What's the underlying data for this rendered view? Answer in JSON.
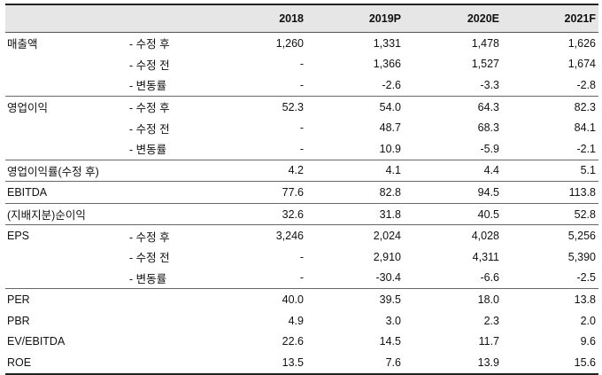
{
  "header": {
    "cols": [
      "2018",
      "2019P",
      "2020E",
      "2021F"
    ]
  },
  "rows": [
    {
      "label": "매출액",
      "sub": "- 수정 후",
      "values": [
        "1,260",
        "1,331",
        "1,478",
        "1,626"
      ]
    },
    {
      "label": "",
      "sub": "- 수정 전",
      "values": [
        "-",
        "1,366",
        "1,527",
        "1,674"
      ]
    },
    {
      "label": "",
      "sub": "- 변동률",
      "values": [
        "-",
        "-2.6",
        "-3.3",
        "-2.8"
      ]
    },
    {
      "label": "영업이익",
      "sub": "- 수정 후",
      "values": [
        "52.3",
        "54.0",
        "64.3",
        "82.3"
      ]
    },
    {
      "label": "",
      "sub": "- 수정 전",
      "values": [
        "-",
        "48.7",
        "68.3",
        "84.1"
      ]
    },
    {
      "label": "",
      "sub": "- 변동률",
      "values": [
        "-",
        "10.9",
        "-5.9",
        "-2.1"
      ]
    },
    {
      "label": "영업이익률(수정 후)",
      "sub": "",
      "values": [
        "4.2",
        "4.1",
        "4.4",
        "5.1"
      ]
    },
    {
      "label": "EBITDA",
      "sub": "",
      "values": [
        "77.6",
        "82.8",
        "94.5",
        "113.8"
      ]
    },
    {
      "label": "(지배지분)순이익",
      "sub": "",
      "values": [
        "32.6",
        "31.8",
        "40.5",
        "52.8"
      ]
    },
    {
      "label": "EPS",
      "sub": "- 수정 후",
      "values": [
        "3,246",
        "2,024",
        "4,028",
        "5,256"
      ]
    },
    {
      "label": "",
      "sub": "- 수정 전",
      "values": [
        "-",
        "2,910",
        "4,311",
        "5,390"
      ]
    },
    {
      "label": "",
      "sub": "- 변동률",
      "values": [
        "-",
        "-30.4",
        "-6.6",
        "-2.5"
      ]
    },
    {
      "label": "PER",
      "sub": "",
      "values": [
        "40.0",
        "39.5",
        "18.0",
        "13.8"
      ]
    },
    {
      "label": "PBR",
      "sub": "",
      "values": [
        "4.9",
        "3.0",
        "2.3",
        "2.0"
      ]
    },
    {
      "label": "EV/EBITDA",
      "sub": "",
      "values": [
        "22.6",
        "14.5",
        "11.7",
        "9.6"
      ]
    },
    {
      "label": "ROE",
      "sub": "",
      "values": [
        "13.5",
        "7.6",
        "13.9",
        "15.6"
      ]
    }
  ]
}
